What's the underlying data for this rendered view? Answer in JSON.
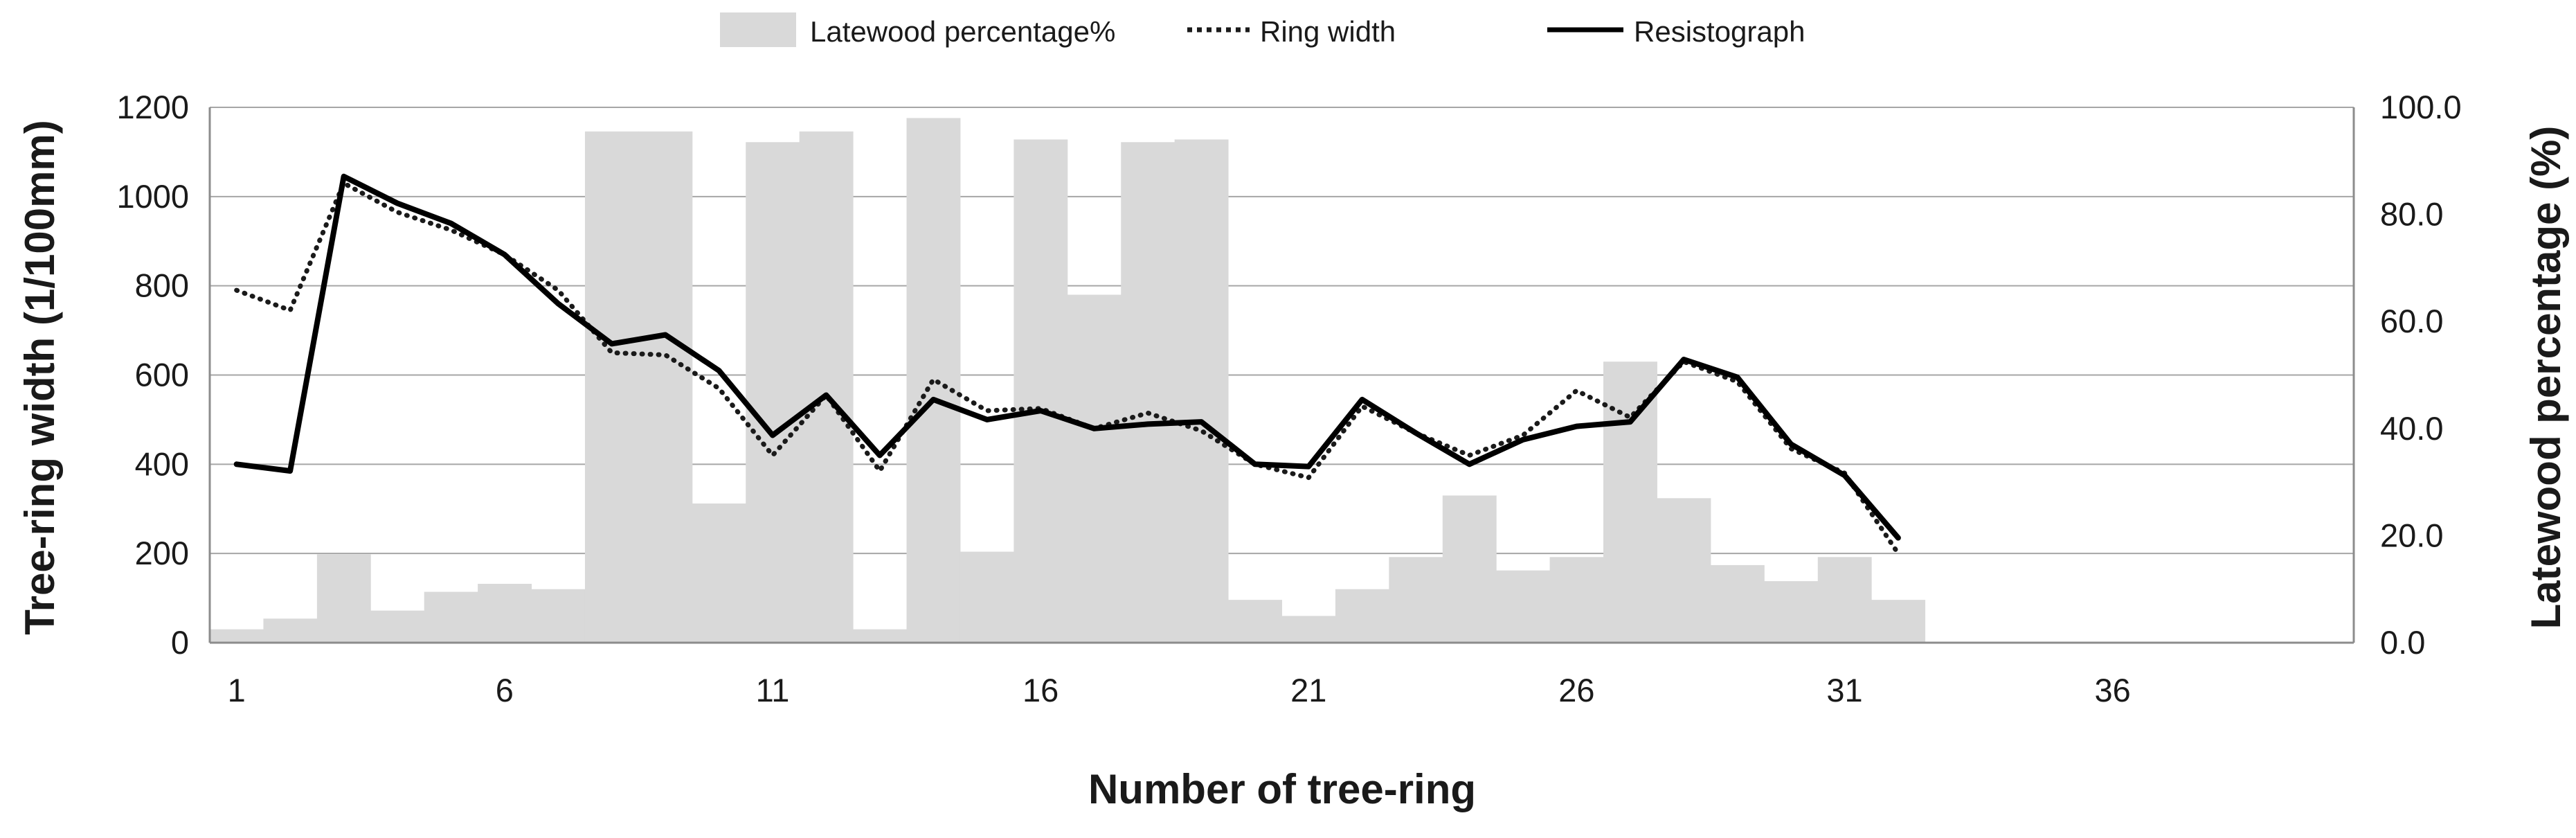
{
  "chart_data": {
    "type": "bar",
    "title": "",
    "xlabel": "Number of tree-ring",
    "ylabel": "Tree-ring width (1/100mm)",
    "y2label": "Latewood percentage (%)",
    "xlim": [
      0.5,
      40.5
    ],
    "ylim": [
      0,
      1200
    ],
    "y2lim": [
      0,
      100
    ],
    "x_ticks": [
      1,
      6,
      11,
      16,
      21,
      26,
      31,
      36
    ],
    "y_ticks": [
      0,
      200,
      400,
      600,
      800,
      1000,
      1200
    ],
    "y2_ticks": [
      "0.0",
      "20.0",
      "40.0",
      "60.0",
      "80.0",
      "100.0"
    ],
    "grid": true,
    "legend_position": "top",
    "x": [
      1,
      2,
      3,
      4,
      5,
      6,
      7,
      8,
      9,
      10,
      11,
      12,
      13,
      14,
      15,
      16,
      17,
      18,
      19,
      20,
      21,
      22,
      23,
      24,
      25,
      26,
      27,
      28,
      29,
      30,
      31,
      32
    ],
    "series": [
      {
        "name": "Latewood percentage%",
        "type": "bar",
        "axis": "right",
        "color": "#d9d9d9",
        "values": [
          2.5,
          4.5,
          16.5,
          6,
          9.5,
          11,
          10,
          95.5,
          95.5,
          26,
          93.5,
          95.5,
          2.5,
          98,
          17,
          94,
          65,
          93.5,
          94,
          8,
          5,
          10,
          16,
          27.5,
          13.5,
          16,
          52.5,
          27,
          14.5,
          11.5,
          16,
          8
        ]
      },
      {
        "name": "Ring width",
        "type": "line",
        "style": "dotted",
        "axis": "left",
        "color": "#1a1a1a",
        "values": [
          790,
          745,
          1030,
          965,
          925,
          870,
          790,
          650,
          645,
          570,
          420,
          555,
          385,
          590,
          520,
          525,
          480,
          515,
          475,
          400,
          370,
          530,
          470,
          420,
          465,
          565,
          505,
          630,
          585,
          435,
          380,
          200
        ]
      },
      {
        "name": "Resistograph",
        "type": "line",
        "style": "solid",
        "axis": "left",
        "color": "#000000",
        "values": [
          400,
          385,
          1045,
          985,
          940,
          870,
          760,
          670,
          690,
          610,
          465,
          555,
          420,
          545,
          500,
          520,
          480,
          490,
          495,
          400,
          395,
          545,
          470,
          400,
          455,
          485,
          495,
          635,
          595,
          445,
          375,
          235
        ]
      }
    ]
  }
}
